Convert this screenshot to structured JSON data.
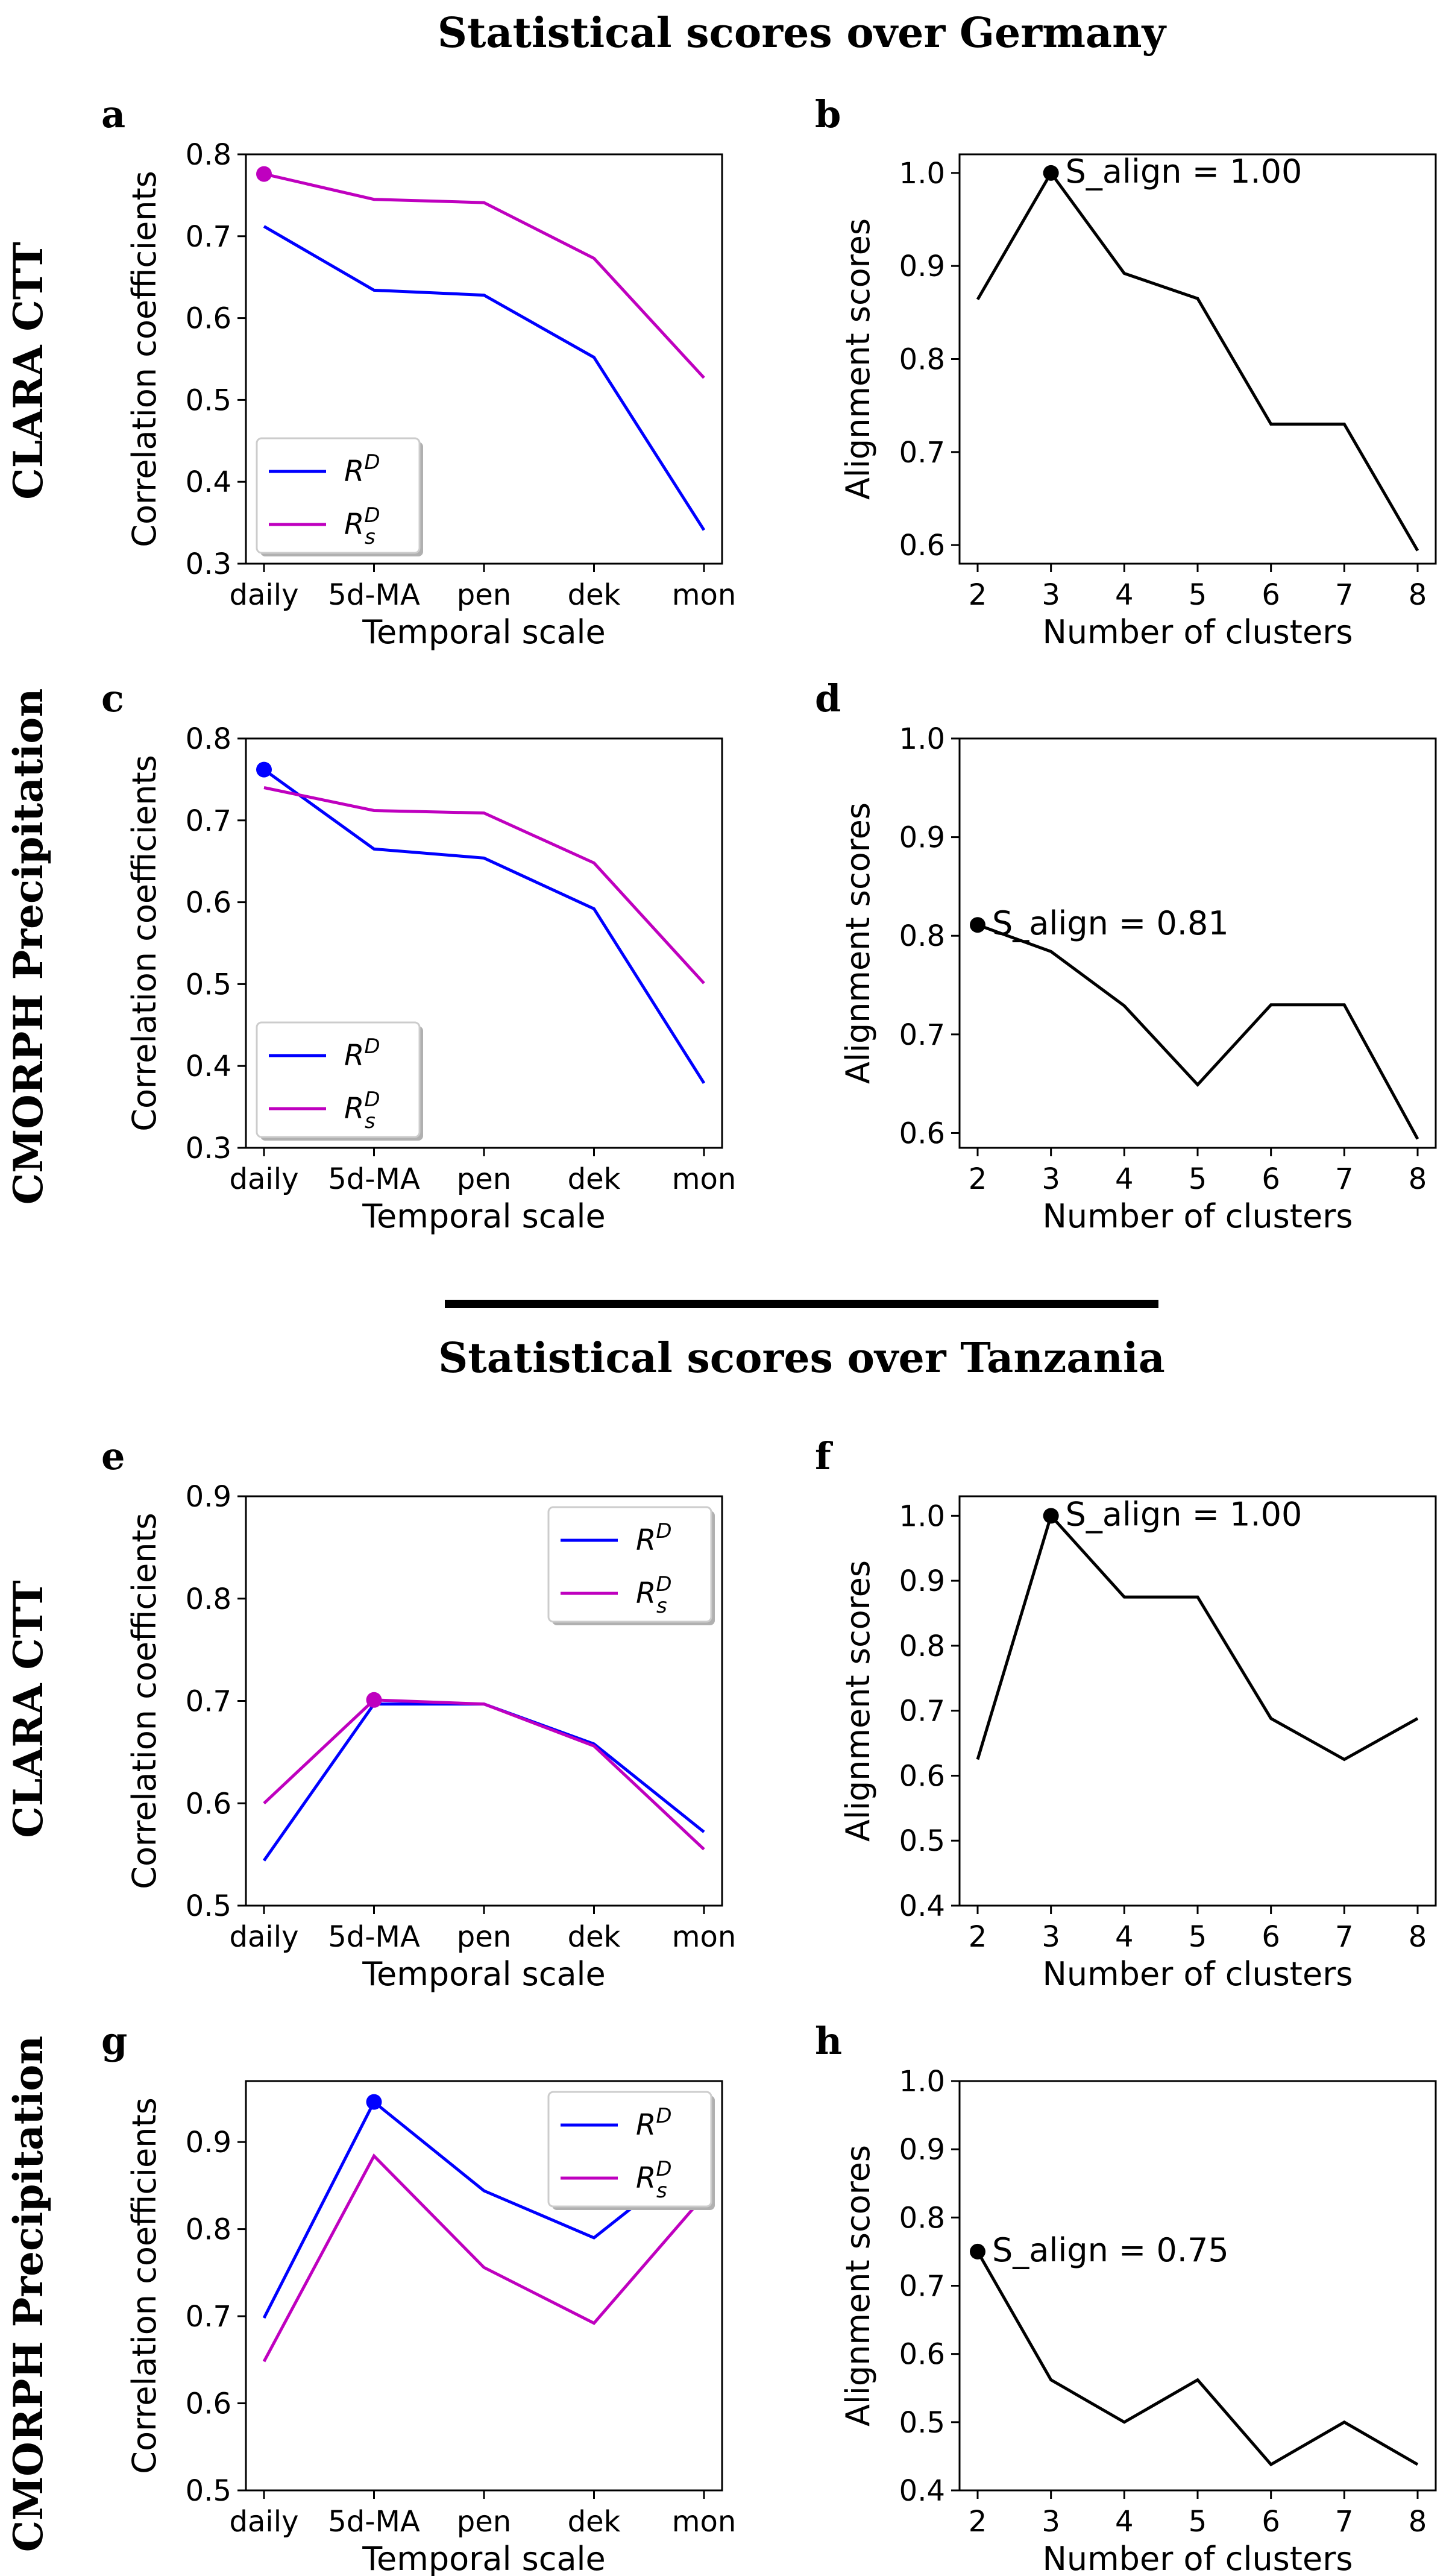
{
  "sections": [
    {
      "title": "Statistical scores over Germany"
    },
    {
      "title": "Statistical scores over Tanzania"
    }
  ],
  "row_labels": [
    "CLARA CTT",
    "CMORPH Precipitation",
    "CLARA CTT",
    "CMORPH Precipitation"
  ],
  "colors": {
    "RD": "#0000ff",
    "RsD": "#bf00bf",
    "align": "#000000"
  },
  "chart_data": [
    {
      "panel": "a",
      "type": "line",
      "categories": [
        "daily",
        "5d-MA",
        "pen",
        "dek",
        "mon"
      ],
      "xlabel": "Temporal scale",
      "ylabel": "Correlation coefficients",
      "ylim": [
        0.3,
        0.8
      ],
      "yticks": [
        "0.3",
        "0.4",
        "0.5",
        "0.6",
        "0.7",
        "0.8"
      ],
      "legend_position": "lower-left",
      "series": [
        {
          "name": "R^D",
          "values": [
            0.712,
            0.634,
            0.628,
            0.552,
            0.341
          ]
        },
        {
          "name": "R_s^D",
          "values": [
            0.776,
            0.745,
            0.741,
            0.673,
            0.527
          ]
        }
      ],
      "highlight": {
        "series": 1,
        "index": 0
      }
    },
    {
      "panel": "b",
      "type": "line",
      "x": [
        2,
        3,
        4,
        5,
        6,
        7,
        8
      ],
      "xticks": [
        "2",
        "3",
        "4",
        "5",
        "6",
        "7",
        "8"
      ],
      "xlabel": "Number of clusters",
      "ylabel": "Alignment scores",
      "ylim": [
        0.58,
        1.02
      ],
      "yticks": [
        "0.6",
        "0.7",
        "0.8",
        "0.9",
        "1.0"
      ],
      "values": [
        0.864,
        1.0,
        0.892,
        0.865,
        0.73,
        0.73,
        0.594
      ],
      "highlight_index": 1,
      "annotation": "S_align = 1.00"
    },
    {
      "panel": "c",
      "type": "line",
      "categories": [
        "daily",
        "5d-MA",
        "pen",
        "dek",
        "mon"
      ],
      "xlabel": "Temporal scale",
      "ylabel": "Correlation coefficients",
      "ylim": [
        0.3,
        0.8
      ],
      "yticks": [
        "0.3",
        "0.4",
        "0.5",
        "0.6",
        "0.7",
        "0.8"
      ],
      "legend_position": "lower-left",
      "series": [
        {
          "name": "R^D",
          "values": [
            0.762,
            0.665,
            0.654,
            0.592,
            0.379
          ]
        },
        {
          "name": "R_s^D",
          "values": [
            0.74,
            0.712,
            0.709,
            0.648,
            0.501
          ]
        }
      ],
      "highlight": {
        "series": 0,
        "index": 0
      }
    },
    {
      "panel": "d",
      "type": "line",
      "x": [
        2,
        3,
        4,
        5,
        6,
        7,
        8
      ],
      "xticks": [
        "2",
        "3",
        "4",
        "5",
        "6",
        "7",
        "8"
      ],
      "xlabel": "Number of clusters",
      "ylabel": "Alignment scores",
      "ylim": [
        0.585,
        1.0
      ],
      "yticks": [
        "0.6",
        "0.7",
        "0.8",
        "0.9",
        "1.0"
      ],
      "values": [
        0.811,
        0.784,
        0.729,
        0.649,
        0.73,
        0.73,
        0.594
      ],
      "highlight_index": 0,
      "annotation": "S_align = 0.81"
    },
    {
      "panel": "e",
      "type": "line",
      "categories": [
        "daily",
        "5d-MA",
        "pen",
        "dek",
        "mon"
      ],
      "xlabel": "Temporal scale",
      "ylabel": "Correlation coefficients",
      "ylim": [
        0.5,
        0.9
      ],
      "yticks": [
        "0.5",
        "0.6",
        "0.7",
        "0.8",
        "0.9"
      ],
      "legend_position": "upper-right",
      "series": [
        {
          "name": "R^D",
          "values": [
            0.544,
            0.697,
            0.697,
            0.658,
            0.572
          ]
        },
        {
          "name": "R_s^D",
          "values": [
            0.6,
            0.701,
            0.697,
            0.656,
            0.555
          ]
        }
      ],
      "highlight": {
        "series": 1,
        "index": 1
      }
    },
    {
      "panel": "f",
      "type": "line",
      "x": [
        2,
        3,
        4,
        5,
        6,
        7,
        8
      ],
      "xticks": [
        "2",
        "3",
        "4",
        "5",
        "6",
        "7",
        "8"
      ],
      "xlabel": "Number of clusters",
      "ylabel": "Alignment scores",
      "ylim": [
        0.4,
        1.03
      ],
      "yticks": [
        "0.4",
        "0.5",
        "0.6",
        "0.7",
        "0.8",
        "0.9",
        "1.0"
      ],
      "values": [
        0.625,
        1.0,
        0.875,
        0.875,
        0.688,
        0.625,
        0.688
      ],
      "highlight_index": 1,
      "annotation": "S_align = 1.00"
    },
    {
      "panel": "g",
      "type": "line",
      "categories": [
        "daily",
        "5d-MA",
        "pen",
        "dek",
        "mon"
      ],
      "xlabel": "Temporal scale",
      "ylabel": "Correlation coefficients",
      "ylim": [
        0.5,
        0.97
      ],
      "yticks": [
        "0.5",
        "0.6",
        "0.7",
        "0.8",
        "0.9"
      ],
      "legend_position": "upper-right",
      "series": [
        {
          "name": "R^D",
          "values": [
            0.698,
            0.946,
            0.844,
            0.79,
            0.89
          ]
        },
        {
          "name": "R_s^D",
          "values": [
            0.648,
            0.884,
            0.756,
            0.692,
            0.838
          ]
        }
      ],
      "highlight": {
        "series": 0,
        "index": 1
      }
    },
    {
      "panel": "h",
      "type": "line",
      "x": [
        2,
        3,
        4,
        5,
        6,
        7,
        8
      ],
      "xticks": [
        "2",
        "3",
        "4",
        "5",
        "6",
        "7",
        "8"
      ],
      "xlabel": "Number of clusters",
      "ylabel": "Alignment scores",
      "ylim": [
        0.4,
        1.0
      ],
      "yticks": [
        "0.4",
        "0.5",
        "0.6",
        "0.7",
        "0.8",
        "0.9",
        "1.0"
      ],
      "values": [
        0.75,
        0.562,
        0.5,
        0.562,
        0.438,
        0.5,
        0.438
      ],
      "highlight_index": 0,
      "annotation": "S_align = 0.75"
    }
  ]
}
